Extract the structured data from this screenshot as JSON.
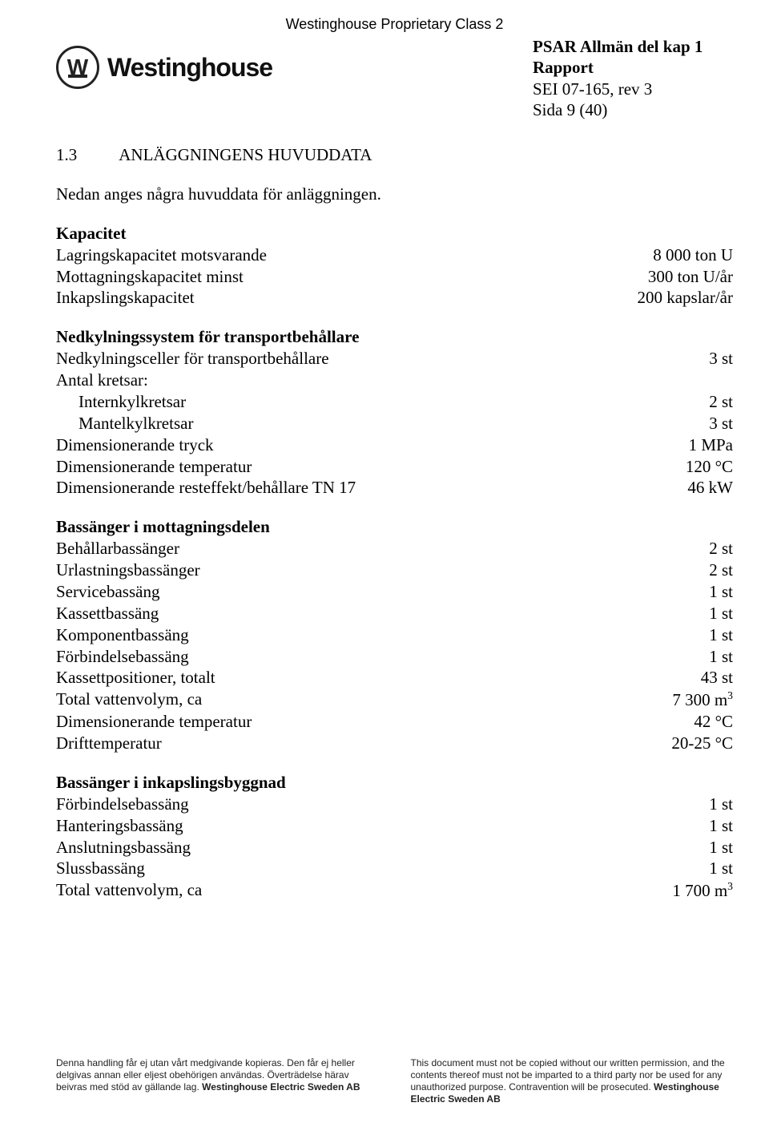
{
  "header": {
    "proprietary": "Westinghouse Proprietary Class 2",
    "wordmark": "Westinghouse",
    "doc_title": {
      "line1": "PSAR Allmän del kap 1",
      "line2": "Rapport",
      "line3": "SEI 07-165, rev 3",
      "line4": "Sida 9 (40)"
    }
  },
  "section": {
    "number": "1.3",
    "title": "ANLÄGGNINGENS HUVUDDATA",
    "intro": "Nedan anges några huvuddata för anläggningen."
  },
  "groups": [
    {
      "title": "Kapacitet",
      "rows": [
        {
          "label": "Lagringskapacitet motsvarande",
          "value": "8 000 ton U"
        },
        {
          "label": "Mottagningskapacitet minst",
          "value": "300 ton U/år"
        },
        {
          "label": "Inkapslingskapacitet",
          "value": "200 kapslar/år"
        }
      ]
    },
    {
      "title": "Nedkylningssystem för transportbehållare",
      "rows": [
        {
          "label": "Nedkylningsceller för transportbehållare",
          "value": "3 st"
        },
        {
          "label": "Antal kretsar:",
          "value": ""
        },
        {
          "label": "Internkylkretsar",
          "value": "2 st",
          "indent": true
        },
        {
          "label": "Mantelkylkretsar",
          "value": "3 st",
          "indent": true
        },
        {
          "label": "Dimensionerande tryck",
          "value": "1 MPa"
        },
        {
          "label": "Dimensionerande temperatur",
          "value": "120 °C"
        },
        {
          "label": "Dimensionerande resteffekt/behållare TN 17",
          "value": "46 kW"
        }
      ]
    },
    {
      "title": "Bassänger i mottagningsdelen",
      "rows": [
        {
          "label": "Behållarbassänger",
          "value": "2 st"
        },
        {
          "label": "Urlastningsbassänger",
          "value": "2 st"
        },
        {
          "label": "Servicebassäng",
          "value": "1 st"
        },
        {
          "label": "Kassettbassäng",
          "value": "1 st"
        },
        {
          "label": "Komponentbassäng",
          "value": "1 st"
        },
        {
          "label": "Förbindelsebassäng",
          "value": "1 st"
        },
        {
          "label": "Kassettpositioner, totalt",
          "value": "43 st"
        },
        {
          "label": "Total vattenvolym, ca",
          "value": "7 300 m",
          "sup": "3"
        },
        {
          "label": "Dimensionerande temperatur",
          "value": "42 °C"
        },
        {
          "label": "Drifttemperatur",
          "value": "20-25 °C"
        }
      ]
    },
    {
      "title": "Bassänger i inkapslingsbyggnad",
      "rows": [
        {
          "label": "Förbindelsebassäng",
          "value": "1 st"
        },
        {
          "label": "Hanteringsbassäng",
          "value": "1 st"
        },
        {
          "label": "Anslutningsbassäng",
          "value": "1 st"
        },
        {
          "label": "Slussbassäng",
          "value": "1 st"
        },
        {
          "label": "Total vattenvolym, ca",
          "value": "1 700 m",
          "sup": "3"
        }
      ]
    }
  ],
  "footer": {
    "left": {
      "text": "Denna handling får ej utan vårt medgivande kopieras. Den får ej heller delgivas annan eller eljest obehörigen användas. Överträdelse härav beivras med stöd av gällande lag. ",
      "brand": "Westinghouse Electric Sweden AB"
    },
    "right": {
      "text": "This document must not be copied without our written permission, and the contents thereof must not be imparted to a third party nor be used for any unauthorized purpose. Contravention will be prosecuted. ",
      "brand": "Westinghouse Electric Sweden AB"
    }
  }
}
